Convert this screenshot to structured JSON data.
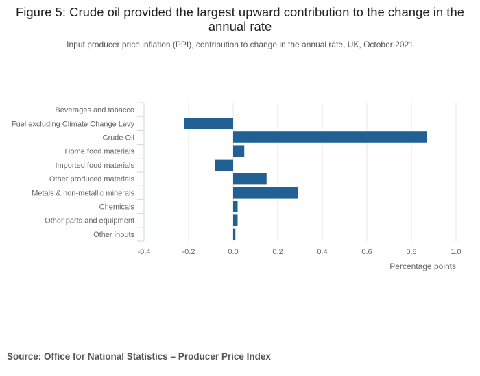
{
  "title": "Figure 5: Crude oil provided the largest upward contribution to the change in the annual rate",
  "subtitle": "Input producer price inflation (PPI), contribution to change in the annual rate, UK, October 2021",
  "source": "Source: Office for National Statistics – Producer Price Index",
  "colors": {
    "bar": "#206095",
    "grid": "#e6e6e6",
    "axis": "#ccd6eb",
    "label": "#666666"
  },
  "chart_data": {
    "type": "bar",
    "orientation": "horizontal",
    "categories": [
      "Beverages and tobacco",
      "Fuel excluding Climate Change Levy",
      "Crude Oil",
      "Home food materials",
      "Imported food materials",
      "Other produced materials",
      "Metals & non-metallic minerals",
      "Chemicals",
      "Other parts and equipment",
      "Other inputs"
    ],
    "values": [
      0.0,
      -0.22,
      0.87,
      0.05,
      -0.08,
      0.15,
      0.29,
      0.02,
      0.02,
      0.01
    ],
    "xlim": [
      -0.4,
      1.0
    ],
    "xticks": [
      -0.4,
      -0.2,
      0.0,
      0.2,
      0.4,
      0.6,
      0.8,
      1.0
    ],
    "xtick_labels": [
      "-0.4",
      "-0.2",
      "0.0",
      "0.2",
      "0.4",
      "0.6",
      "0.8",
      "1.0"
    ],
    "xlabel": "Percentage points",
    "ylabel": "",
    "grid": true,
    "legend": "none"
  }
}
